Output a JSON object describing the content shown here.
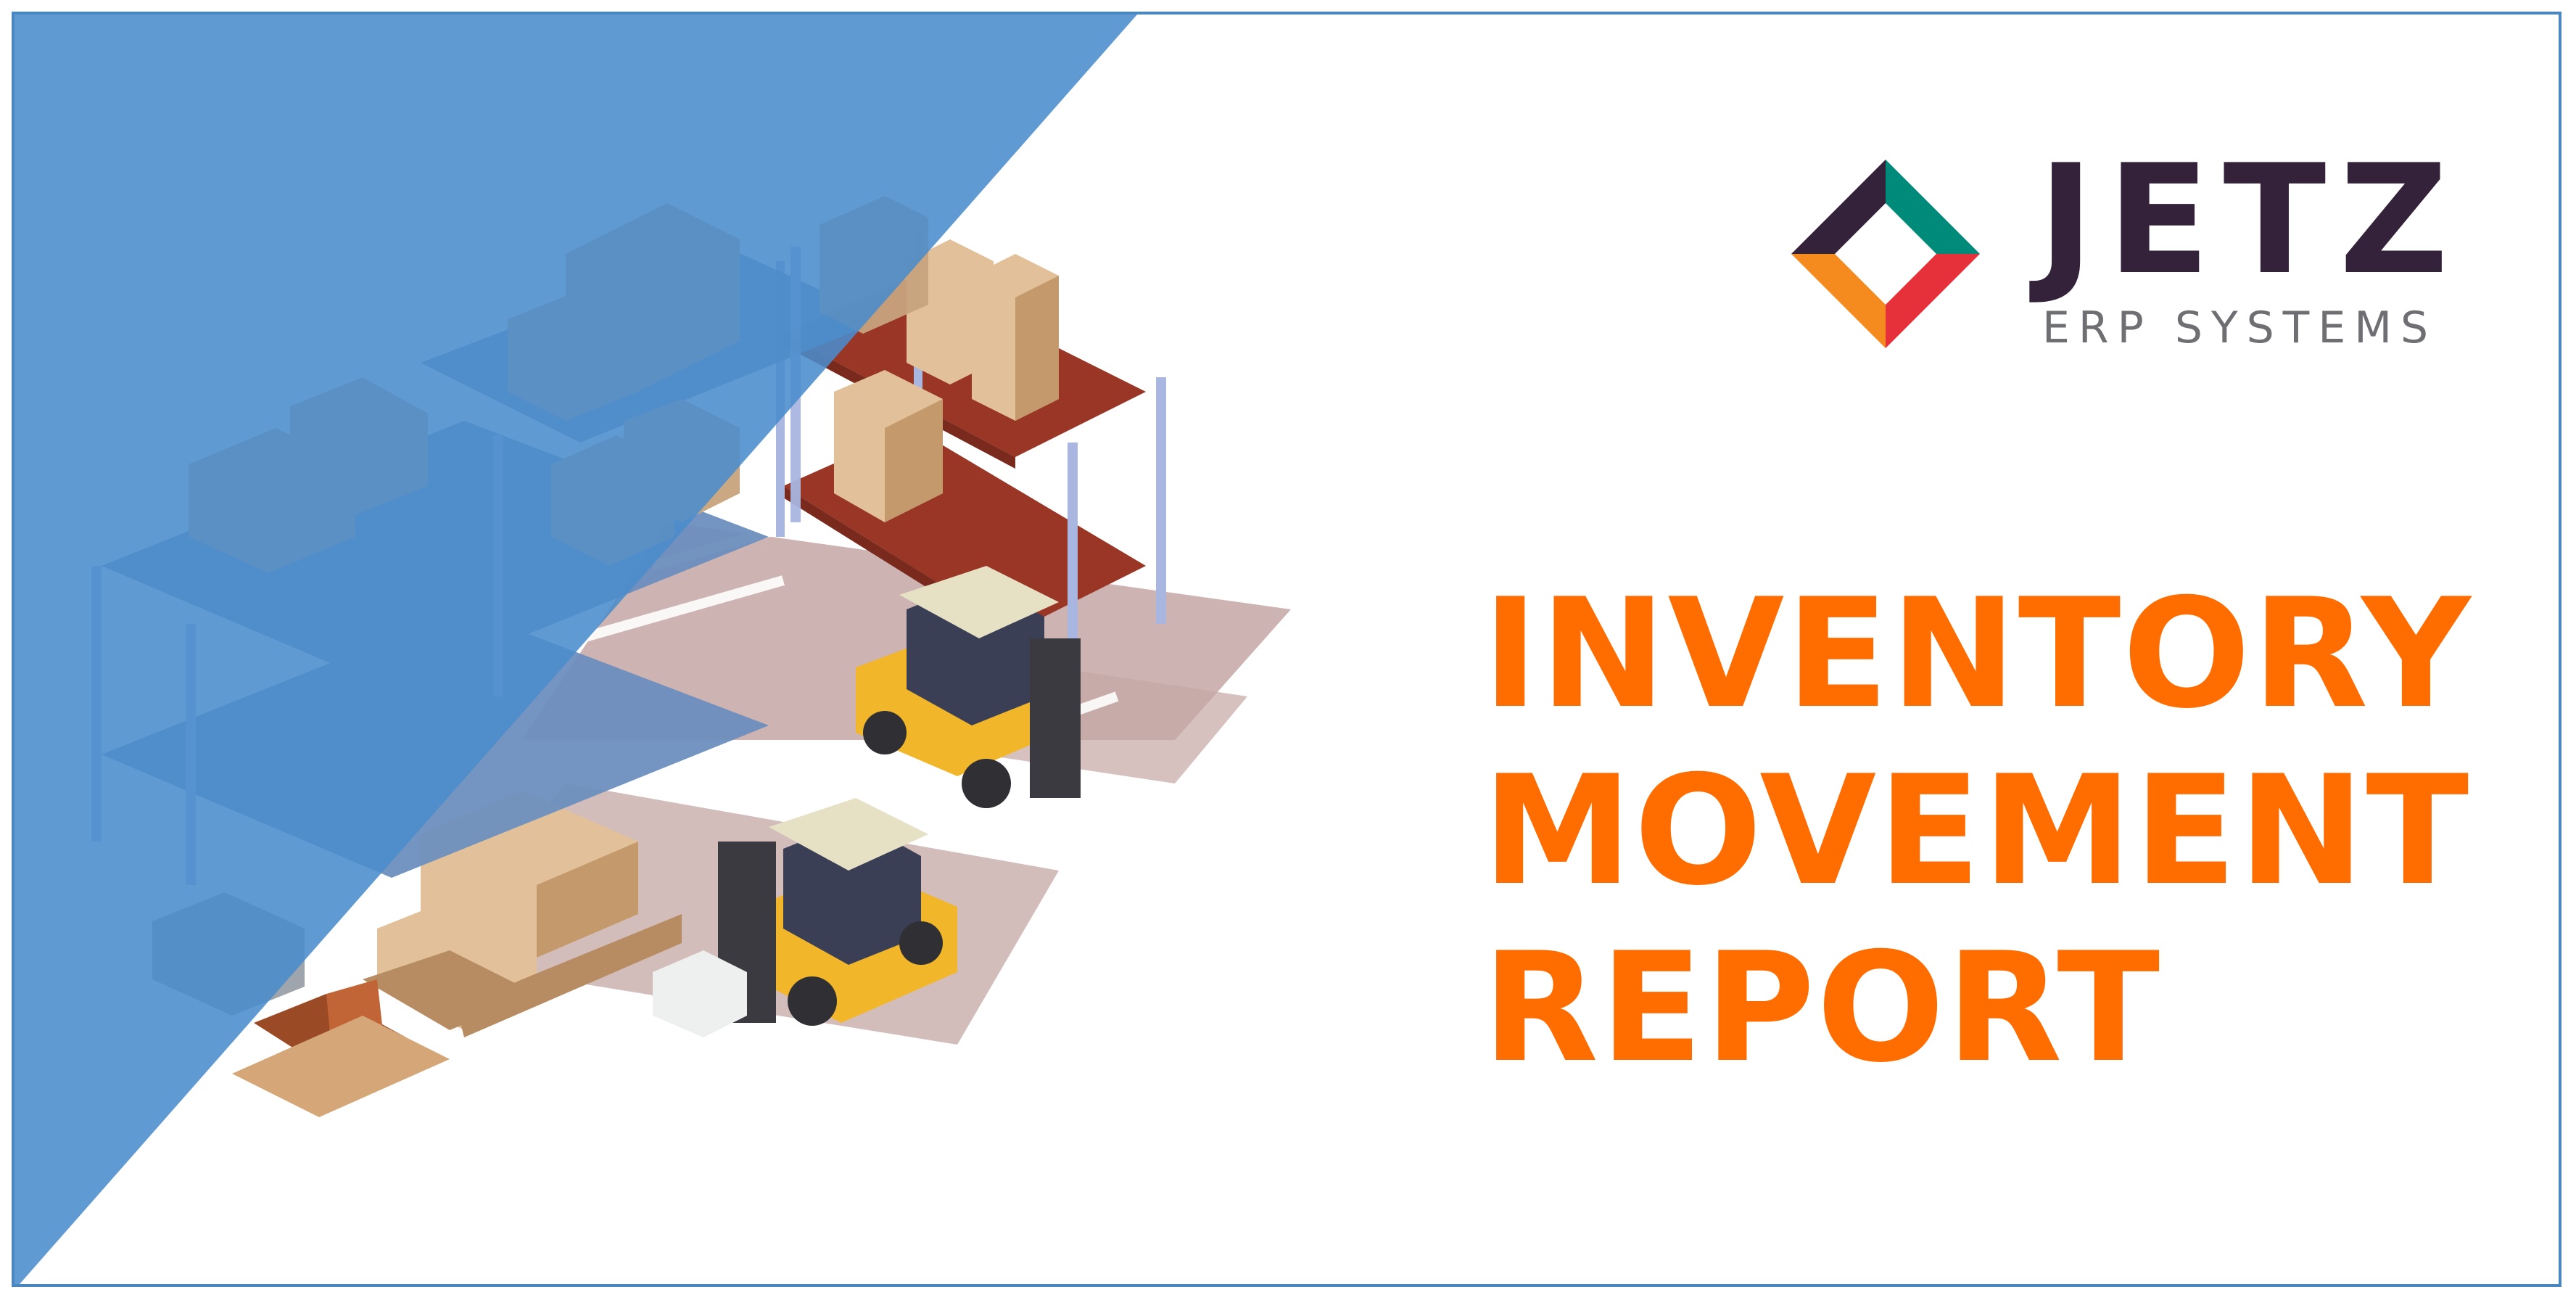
{
  "brand": {
    "name": "JETZ",
    "tagline": "ERP SYSTEMS",
    "colors": {
      "teal": "#008a79",
      "red": "#e7313a",
      "orange": "#f58a1f",
      "purple": "#34213a"
    }
  },
  "title": {
    "line1": "INVENTORY",
    "line2": "MOVEMENT",
    "line3": "REPORT",
    "color": "#ff6d00"
  },
  "illustration": {
    "subject": "isometric-warehouse",
    "overlay_color": "#4a8ccc"
  }
}
